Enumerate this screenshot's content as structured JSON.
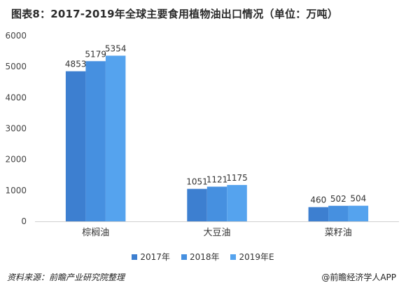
{
  "title": "图表8：2017-2019年全球主要食用植物油出口情况（单位：万吨）",
  "source": "资料来源：前瞻产业研究院整理",
  "brand": "@前瞻经济学人APP",
  "colors": {
    "series": [
      "#3d7fd0",
      "#4690e0",
      "#55a3ee"
    ],
    "axis": "#cfcfcf",
    "grid": "#ececec"
  },
  "chart_data": {
    "type": "bar",
    "title": "图表8：2017-2019年全球主要食用植物油出口情况（单位：万吨）",
    "categories": [
      "棕榈油",
      "大豆油",
      "菜籽油"
    ],
    "series": [
      {
        "name": "2017年",
        "values": [
          4853,
          1051,
          460
        ]
      },
      {
        "name": "2018年",
        "values": [
          5179,
          1121,
          502
        ]
      },
      {
        "name": "2019年E",
        "values": [
          5354,
          1175,
          504
        ]
      }
    ],
    "ylim": [
      0,
      6000
    ],
    "yticks": [
      0,
      1000,
      2000,
      3000,
      4000,
      5000,
      6000
    ],
    "grid": false,
    "legend": "bottom"
  }
}
